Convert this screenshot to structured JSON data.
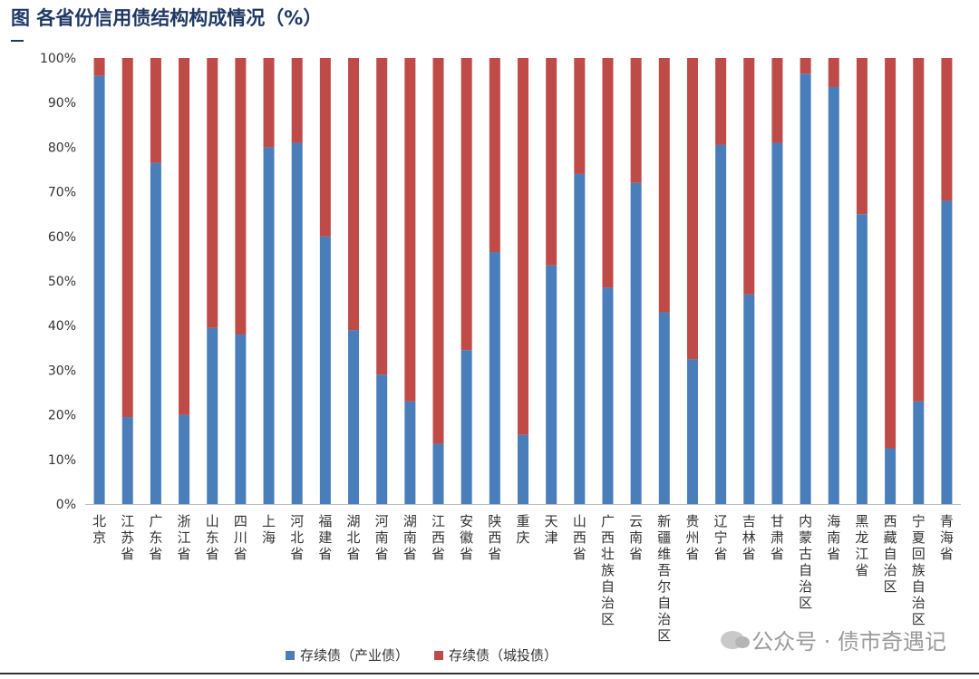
{
  "figure_title": "图  各省份信用债结构构成情况（%）",
  "watermark": "公众号 · 债市奇遇记",
  "chart_data": {
    "type": "bar",
    "stacked": true,
    "categories": [
      "北京",
      "江苏省",
      "广东省",
      "浙江省",
      "山东省",
      "四川省",
      "上海",
      "河北省",
      "福建省",
      "湖北省",
      "河南省",
      "湖南省",
      "江西省",
      "安徽省",
      "陕西省",
      "重庆",
      "天津",
      "山西省",
      "广西壮族自治区",
      "云南省",
      "新疆维吾尔自治区",
      "贵州省",
      "辽宁省",
      "吉林省",
      "甘肃省",
      "内蒙古自治区",
      "海南省",
      "黑龙江省",
      "西藏自治区",
      "宁夏回族自治区",
      "青海省"
    ],
    "series": [
      {
        "name": "存续债（产业债）",
        "color": "#4a7ebb",
        "values": [
          96,
          19.5,
          76.5,
          20,
          39.5,
          38,
          80,
          81,
          60,
          39,
          29,
          23,
          13.5,
          34.5,
          56.5,
          15.5,
          53.5,
          74,
          48.5,
          72,
          43,
          32.5,
          80.5,
          47,
          81,
          96.5,
          93.5,
          65,
          12.5,
          23,
          68
        ]
      },
      {
        "name": "存续债（城投债）",
        "color": "#be4b48",
        "values": [
          4,
          80.5,
          23.5,
          80,
          60.5,
          62,
          20,
          19,
          40,
          61,
          71,
          77,
          86.5,
          65.5,
          43.5,
          84.5,
          46.5,
          26,
          51.5,
          28,
          57,
          67.5,
          19.5,
          53,
          19,
          3.5,
          6.5,
          35,
          87.5,
          77,
          32
        ]
      }
    ],
    "y_ticks": [
      "0%",
      "10%",
      "20%",
      "30%",
      "40%",
      "50%",
      "60%",
      "70%",
      "80%",
      "90%",
      "100%"
    ],
    "ylim": [
      0,
      100
    ],
    "legend_position": "bottom",
    "grid": false
  }
}
